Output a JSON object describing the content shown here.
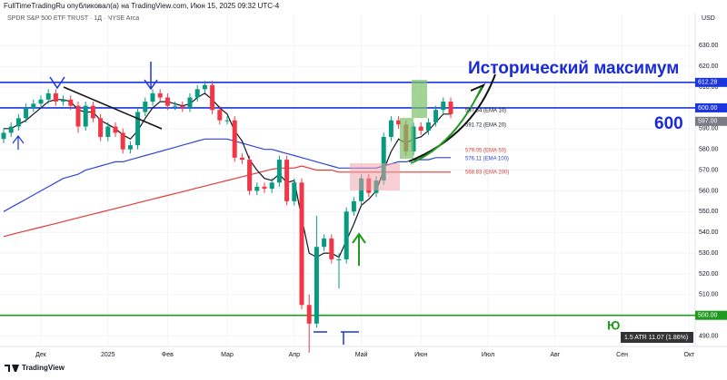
{
  "header": {
    "author_line": "FullTimeTradingRu опубликовал(а) на TradingView.com, Июн 15, 2025 09:32 UTC-4",
    "brand": "TradingView"
  },
  "chart_data": {
    "type": "candlestick",
    "title": "SPDR S&P 500 ETF TRUST · 1Д · NYSE Arca",
    "currency": "USD",
    "up_color": "#089981",
    "down_color": "#f23645",
    "categories": [
      null,
      null,
      null,
      null,
      null,
      "Дек",
      null,
      null,
      null,
      null,
      null,
      null,
      null,
      null,
      "2025",
      null,
      null,
      null,
      null,
      null,
      null,
      null,
      "Фев",
      null,
      null,
      null,
      null,
      null,
      null,
      null,
      "Мар",
      null,
      null,
      null,
      null,
      null,
      null,
      null,
      null,
      "Апр",
      null,
      null,
      null,
      null,
      null,
      null,
      null,
      null,
      "Май",
      null,
      null,
      null,
      null,
      null,
      null,
      null,
      "Июн",
      null,
      null,
      null,
      null,
      null,
      null,
      null,
      null,
      "Июл",
      null,
      null,
      null,
      null,
      null,
      null,
      null,
      null,
      "Авг",
      null,
      null,
      null,
      null,
      null,
      null,
      null,
      null,
      "Сен",
      null,
      null,
      null,
      null,
      null,
      null,
      null,
      null,
      "Окт"
    ],
    "open": [
      585,
      588,
      591,
      595,
      600,
      602,
      604,
      607,
      603,
      604,
      601,
      591,
      601,
      595,
      586,
      591,
      588,
      580,
      582,
      598,
      603,
      607,
      605,
      601,
      601,
      600,
      605,
      609,
      611,
      599,
      594,
      594,
      576,
      575,
      560,
      562,
      561,
      564,
      575,
      555,
      564,
      505,
      496,
      533,
      537,
      527,
      527,
      550,
      555,
      566,
      559,
      565,
      586,
      594,
      592,
      579,
      591,
      589,
      593,
      599,
      603,
      null,
      null,
      null,
      null,
      null,
      null,
      null,
      null,
      null,
      null,
      null,
      null,
      null,
      null,
      null,
      null,
      null,
      null,
      null,
      null,
      null,
      null,
      null,
      null,
      null,
      null,
      null,
      null,
      null,
      null,
      null,
      null
    ],
    "high": [
      590,
      593,
      597,
      602,
      604,
      606,
      609,
      609,
      606,
      606,
      603,
      603,
      603,
      597,
      593,
      593,
      590,
      584,
      600,
      605,
      609,
      609,
      607,
      603,
      603,
      607,
      611,
      613,
      613,
      601,
      596,
      596,
      578,
      577,
      564,
      564,
      566,
      577,
      577,
      566,
      566,
      510,
      548,
      539,
      539,
      530,
      552,
      557,
      568,
      568,
      567,
      588,
      596,
      596,
      594,
      593,
      593,
      595,
      601,
      605,
      605,
      null,
      null,
      null,
      null,
      null,
      null,
      null,
      null,
      null,
      null,
      null,
      null,
      null,
      null,
      null,
      null,
      null,
      null,
      null,
      null,
      null,
      null,
      null,
      null,
      null,
      null,
      null,
      null,
      null,
      null,
      null,
      null
    ],
    "low": [
      583,
      586,
      589,
      593,
      598,
      600,
      602,
      601,
      601,
      599,
      588,
      589,
      593,
      584,
      584,
      586,
      578,
      578,
      580,
      596,
      601,
      603,
      599,
      599,
      598,
      598,
      603,
      607,
      597,
      592,
      592,
      574,
      573,
      558,
      558,
      559,
      559,
      562,
      553,
      553,
      503,
      482,
      494,
      531,
      525,
      513,
      525,
      548,
      553,
      557,
      557,
      563,
      584,
      590,
      577,
      577,
      587,
      587,
      591,
      597,
      595,
      null,
      null,
      null,
      null,
      null,
      null,
      null,
      null,
      null,
      null,
      null,
      null,
      null,
      null,
      null,
      null,
      null,
      null,
      null,
      null,
      null,
      null,
      null,
      null,
      null,
      null,
      null,
      null,
      null,
      null,
      null,
      null
    ],
    "close": [
      588,
      591,
      595,
      600,
      602,
      604,
      607,
      603,
      604,
      601,
      591,
      601,
      595,
      586,
      591,
      588,
      580,
      582,
      598,
      603,
      607,
      605,
      601,
      601,
      600,
      605,
      609,
      611,
      599,
      594,
      594,
      576,
      575,
      560,
      562,
      561,
      564,
      575,
      555,
      564,
      505,
      496,
      533,
      537,
      527,
      527,
      550,
      555,
      566,
      559,
      565,
      586,
      594,
      592,
      579,
      591,
      589,
      593,
      599,
      603,
      597,
      null,
      null,
      null,
      null,
      null,
      null,
      null,
      null,
      null,
      null,
      null,
      null,
      null,
      null,
      null,
      null,
      null,
      null,
      null,
      null,
      null,
      null,
      null,
      null,
      null,
      null,
      null,
      null,
      null,
      null,
      null,
      null
    ],
    "lines": [
      {
        "color": "#e53935",
        "values": [
          538,
          538.9,
          539.8,
          540.7,
          541.6,
          542.5,
          543.4,
          544.3,
          545.2,
          546.1,
          547,
          547.9,
          548.8,
          549.7,
          550.6,
          551.5,
          552.4,
          553.3,
          554.2,
          555.1,
          556,
          556.9,
          557.8,
          558.7,
          559.6,
          560.5,
          561.4,
          562.3,
          563.2,
          564.1,
          565,
          565.9,
          566.8,
          567.7,
          568.6,
          569.5,
          570.4,
          571,
          571,
          571,
          572,
          571,
          570,
          570,
          570,
          569,
          569,
          569,
          569,
          569,
          569,
          569,
          569,
          569,
          569,
          569,
          569,
          569,
          569,
          569,
          569,
          null,
          null,
          null,
          null,
          null,
          null,
          null,
          null,
          null,
          null,
          null,
          null,
          null,
          null,
          null,
          null,
          null,
          null,
          null,
          null,
          null,
          null,
          null,
          null,
          null,
          null,
          null,
          null,
          null,
          null,
          null,
          null
        ]
      },
      {
        "color": "#2f45d8",
        "values": [
          550,
          552,
          554,
          556,
          558,
          560,
          562,
          564,
          566,
          567,
          568,
          570,
          571,
          572,
          573,
          574,
          574,
          575,
          576,
          577,
          578,
          579,
          580,
          581,
          582,
          583,
          584,
          585,
          585,
          585,
          585,
          584,
          583,
          582,
          581,
          580,
          580,
          579,
          578,
          577,
          576,
          575,
          574,
          573,
          572,
          571,
          571,
          571,
          571,
          571,
          571,
          572,
          573,
          574,
          574,
          575,
          575,
          575,
          576,
          576,
          576,
          null,
          null,
          null,
          null,
          null,
          null,
          null,
          null,
          null,
          null,
          null,
          null,
          null,
          null,
          null,
          null,
          null,
          null,
          null,
          null,
          null,
          null,
          null,
          null,
          null,
          null,
          null,
          null,
          null,
          null,
          null,
          null
        ]
      },
      {
        "color": "#131722",
        "values": [
          590,
          590,
          592,
          594,
          597,
          600,
          603,
          604,
          604,
          603,
          599,
          598,
          598,
          594,
          592,
          590,
          587,
          585,
          589,
          595,
          600,
          603,
          603,
          602,
          601,
          602,
          605,
          607,
          604,
          600,
          597,
          589,
          584,
          575,
          570,
          566,
          565,
          568,
          564,
          565,
          547,
          530,
          528,
          530,
          530,
          528,
          536,
          544,
          553,
          556,
          560,
          570,
          579,
          585,
          583,
          585,
          586,
          589,
          593,
          597,
          597,
          null,
          null,
          null,
          null,
          null,
          null,
          null,
          null,
          null,
          null,
          null,
          null,
          null,
          null,
          null,
          null,
          null,
          null,
          null,
          null,
          null,
          null,
          null,
          null,
          null,
          null,
          null,
          null,
          null,
          null,
          null,
          null
        ]
      }
    ],
    "levels": [
      {
        "value": 612.28,
        "color": "#1a35e0"
      },
      {
        "value": 600,
        "label": "600.00",
        "color": "#1a35e0"
      },
      {
        "value": 500,
        "label": "500.00",
        "color": "#1e9a1e"
      }
    ],
    "last_price": {
      "value": 597,
      "label": "597.00",
      "color": "#787b86"
    },
    "ylim": [
      485,
      645
    ],
    "yticks": [
      {
        "value": 490,
        "label": "490.00"
      },
      {
        "value": 500,
        "label": "500.00"
      },
      {
        "value": 510,
        "label": "510.00"
      },
      {
        "value": 520,
        "label": "520.00"
      },
      {
        "value": 530,
        "label": "530.00"
      },
      {
        "value": 540,
        "label": "540.00"
      },
      {
        "value": 550,
        "label": "550.00"
      },
      {
        "value": 560,
        "label": "560.00"
      },
      {
        "value": 570,
        "label": "570.00"
      },
      {
        "value": 580,
        "label": "580.00"
      },
      {
        "value": 590,
        "label": "590.00"
      },
      {
        "value": 600,
        "label": "600.00"
      },
      {
        "value": 610,
        "label": "610.00"
      },
      {
        "value": 620,
        "label": "620.00"
      },
      {
        "value": 630,
        "label": "630.00"
      }
    ],
    "annotations": {
      "headline": "Исторический максимум",
      "target": "600",
      "ema_10": "597.64 (EMA 10)",
      "ema_20": "591.72 (EMA 20)",
      "ema_50": "579.05 (EMA 50)",
      "ema_100": "576.11 (EMA 100)",
      "ema_200": "568.83 (EMA 200)",
      "atr": "1.5 ATR 11.07 (1.86%)",
      "corner": "Ю"
    }
  }
}
